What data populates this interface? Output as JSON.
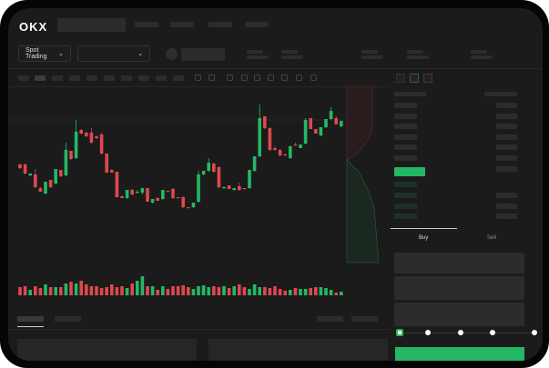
{
  "brand": {
    "logo": "OKX"
  },
  "header": {
    "mode_select": "Spot Trading"
  },
  "trade": {
    "tabs": [
      "Buy",
      "Sell"
    ],
    "active_tab": "Buy",
    "leverage_slider_value": 0
  },
  "colors": {
    "up": "#25b864",
    "down": "#e0474f",
    "background": "#1b1b1b",
    "accent": "#25b864"
  },
  "icons": [
    "chevron-down-icon",
    "orderbook-both-icon",
    "orderbook-bids-icon",
    "orderbook-asks-icon"
  ],
  "chart_data": {
    "type": "candlestick",
    "candles": [
      [
        119,
        120,
        114,
        115
      ],
      [
        119,
        120,
        108,
        109
      ],
      [
        107,
        109,
        106,
        109
      ],
      [
        108,
        114,
        93,
        94
      ],
      [
        93,
        94,
        89,
        89
      ],
      [
        87,
        100,
        86,
        100
      ],
      [
        102,
        102,
        93,
        94
      ],
      [
        98,
        114,
        97,
        114
      ],
      [
        113,
        113,
        105,
        106
      ],
      [
        107,
        143,
        106,
        135
      ],
      [
        134,
        134,
        124,
        125
      ],
      [
        126,
        168,
        125,
        155
      ],
      [
        157,
        158,
        152,
        153
      ],
      [
        154,
        155,
        149,
        150
      ],
      [
        154,
        159,
        142,
        143
      ],
      [
        150,
        151,
        147,
        148
      ],
      [
        152,
        154,
        130,
        131
      ],
      [
        131,
        131,
        110,
        110
      ],
      [
        113,
        114,
        110,
        110
      ],
      [
        111,
        111,
        83,
        83
      ],
      [
        84,
        85,
        82,
        82
      ],
      [
        82,
        91,
        81,
        91
      ],
      [
        91,
        92,
        85,
        86
      ],
      [
        88,
        91,
        87,
        89
      ],
      [
        88,
        93,
        86,
        93
      ],
      [
        93,
        93,
        78,
        78
      ],
      [
        77,
        81,
        76,
        81
      ],
      [
        82,
        83,
        79,
        79
      ],
      [
        81,
        91,
        80,
        91
      ],
      [
        90,
        90,
        89,
        89
      ],
      [
        92,
        93,
        81,
        82
      ],
      [
        83,
        83,
        82,
        82
      ],
      [
        83,
        84,
        71,
        72
      ],
      [
        72,
        72,
        71,
        71
      ],
      [
        72,
        77,
        71,
        77
      ],
      [
        78,
        112,
        77,
        108
      ],
      [
        108,
        112,
        107,
        112
      ],
      [
        112,
        126,
        111,
        121
      ],
      [
        120,
        121,
        110,
        111
      ],
      [
        116,
        117,
        93,
        94
      ],
      [
        93,
        95,
        92,
        94
      ],
      [
        96,
        96,
        92,
        92
      ],
      [
        91,
        93,
        90,
        93
      ],
      [
        95,
        99,
        90,
        91
      ],
      [
        93,
        93,
        92,
        92
      ],
      [
        93,
        113,
        92,
        113
      ],
      [
        112,
        128,
        111,
        128
      ],
      [
        128,
        185,
        127,
        170
      ],
      [
        172,
        172,
        158,
        159
      ],
      [
        159,
        160,
        134,
        135
      ],
      [
        137,
        139,
        134,
        135
      ],
      [
        135,
        136,
        128,
        129
      ],
      [
        130,
        131,
        129,
        129
      ],
      [
        126,
        140,
        125,
        139
      ],
      [
        141,
        143,
        140,
        140
      ],
      [
        137,
        141,
        137,
        141
      ],
      [
        142,
        170,
        141,
        168
      ],
      [
        170,
        170,
        158,
        158
      ],
      [
        158,
        158,
        153,
        153
      ],
      [
        151,
        160,
        150,
        160
      ],
      [
        160,
        169,
        159,
        169
      ],
      [
        169,
        182,
        168,
        178
      ],
      [
        170,
        172,
        163,
        163
      ],
      [
        161,
        167,
        160,
        167
      ]
    ],
    "volume": [
      9,
      10,
      6,
      10,
      8,
      12,
      9,
      9,
      9,
      13,
      15,
      13,
      16,
      12,
      10,
      10,
      8,
      9,
      12,
      9,
      10,
      8,
      13,
      16,
      21,
      10,
      10,
      6,
      10,
      7,
      10,
      10,
      11,
      9,
      7,
      10,
      11,
      9,
      10,
      9,
      10,
      8,
      10,
      12,
      9,
      7,
      12,
      9,
      9,
      8,
      10,
      7,
      5,
      6,
      8,
      7,
      7,
      8,
      9,
      9,
      8,
      6,
      3,
      4
    ],
    "depth": {
      "asks_side": "upper",
      "bids_side": "lower"
    }
  }
}
